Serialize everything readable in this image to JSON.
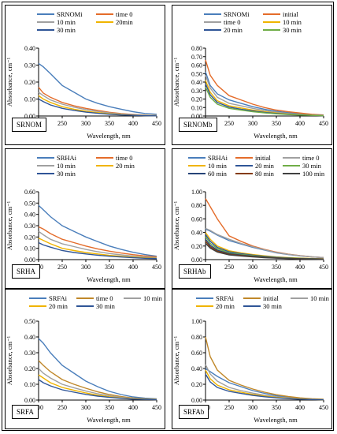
{
  "chart_data": [
    {
      "type": "line",
      "panel_label": "SRNOM",
      "xlabel": "Wavelength, nm",
      "ylabel": "Absorbance, cm⁻¹",
      "xlim": [
        200,
        450
      ],
      "ylim": [
        0,
        0.4
      ],
      "x_ticks": [
        "200",
        "250",
        "300",
        "350",
        "400",
        "450"
      ],
      "y_ticks": [
        "0.00",
        "0.10",
        "0.20",
        "0.30",
        "0.40"
      ],
      "x": [
        200,
        210,
        225,
        250,
        275,
        300,
        325,
        350,
        375,
        400,
        425,
        450
      ],
      "series": [
        {
          "name": "SRNOMi",
          "color": "#4a7ebb",
          "values": [
            0.31,
            0.29,
            0.25,
            0.18,
            0.14,
            0.1,
            0.075,
            0.055,
            0.04,
            0.025,
            0.015,
            0.01
          ]
        },
        {
          "name": "time 0",
          "color": "#e46c2a",
          "values": [
            0.17,
            0.135,
            0.11,
            0.08,
            0.06,
            0.045,
            0.033,
            0.022,
            0.014,
            0.009,
            0.005,
            0.003
          ]
        },
        {
          "name": "10 min",
          "color": "#a0a0a0",
          "values": [
            0.14,
            0.12,
            0.095,
            0.07,
            0.052,
            0.038,
            0.027,
            0.018,
            0.012,
            0.007,
            0.004,
            0.002
          ]
        },
        {
          "name": "20min",
          "color": "#f0b400",
          "values": [
            0.12,
            0.1,
            0.08,
            0.055,
            0.04,
            0.028,
            0.02,
            0.013,
            0.008,
            0.005,
            0.003,
            0.002
          ]
        },
        {
          "name": "30 min",
          "color": "#2f5597",
          "values": [
            0.1,
            0.085,
            0.065,
            0.045,
            0.033,
            0.023,
            0.016,
            0.01,
            0.006,
            0.004,
            0.002,
            0.001
          ]
        }
      ],
      "legend_cols": 2
    },
    {
      "type": "line",
      "panel_label": "SRNOMb",
      "xlabel": "Wavelength, nm",
      "ylabel": "Absorbance, cm⁻¹",
      "xlim": [
        200,
        450
      ],
      "ylim": [
        0,
        0.8
      ],
      "x_ticks": [
        "200",
        "250",
        "300",
        "350",
        "400",
        "450"
      ],
      "y_ticks": [
        "0.00",
        "0.10",
        "0.20",
        "0.30",
        "0.40",
        "0.50",
        "0.60",
        "0.70",
        "0.80"
      ],
      "x": [
        200,
        210,
        225,
        250,
        275,
        300,
        325,
        350,
        375,
        400,
        425,
        450
      ],
      "series": [
        {
          "name": "SRNOMi",
          "color": "#4a7ebb",
          "values": [
            0.52,
            0.36,
            0.26,
            0.19,
            0.15,
            0.11,
            0.08,
            0.055,
            0.04,
            0.025,
            0.015,
            0.01
          ]
        },
        {
          "name": "initial",
          "color": "#e46c2a",
          "values": [
            0.66,
            0.48,
            0.36,
            0.24,
            0.19,
            0.14,
            0.1,
            0.07,
            0.05,
            0.035,
            0.02,
            0.012
          ]
        },
        {
          "name": "time 0",
          "color": "#a0a0a0",
          "values": [
            0.48,
            0.33,
            0.22,
            0.15,
            0.12,
            0.09,
            0.065,
            0.045,
            0.03,
            0.02,
            0.012,
            0.008
          ]
        },
        {
          "name": "10 min",
          "color": "#f0b400",
          "values": [
            0.42,
            0.28,
            0.18,
            0.12,
            0.095,
            0.07,
            0.05,
            0.035,
            0.024,
            0.016,
            0.01,
            0.006
          ]
        },
        {
          "name": "20 min",
          "color": "#2f5597",
          "values": [
            0.38,
            0.25,
            0.16,
            0.105,
            0.08,
            0.06,
            0.042,
            0.03,
            0.02,
            0.013,
            0.008,
            0.005
          ]
        },
        {
          "name": "30 min",
          "color": "#70ad47",
          "values": [
            0.34,
            0.22,
            0.14,
            0.09,
            0.07,
            0.05,
            0.036,
            0.025,
            0.017,
            0.011,
            0.007,
            0.004
          ]
        }
      ],
      "legend_cols": 2
    },
    {
      "type": "line",
      "panel_label": "SRHA",
      "xlabel": "Wavelength, nm",
      "ylabel": "Absorbance, cm⁻¹",
      "xlim": [
        200,
        450
      ],
      "ylim": [
        0,
        0.6
      ],
      "x_ticks": [
        "200",
        "250",
        "300",
        "350",
        "400",
        "450"
      ],
      "y_ticks": [
        "0.00",
        "0.10",
        "0.20",
        "0.30",
        "0.40",
        "0.50",
        "0.60"
      ],
      "x": [
        200,
        210,
        225,
        250,
        275,
        300,
        325,
        350,
        375,
        400,
        425,
        450
      ],
      "series": [
        {
          "name": "SRHAi",
          "color": "#4a7ebb",
          "values": [
            0.48,
            0.44,
            0.38,
            0.3,
            0.25,
            0.2,
            0.16,
            0.12,
            0.09,
            0.065,
            0.045,
            0.03
          ]
        },
        {
          "name": "time 0",
          "color": "#e46c2a",
          "values": [
            0.29,
            0.27,
            0.23,
            0.18,
            0.15,
            0.12,
            0.095,
            0.075,
            0.058,
            0.044,
            0.033,
            0.025
          ]
        },
        {
          "name": "10 min",
          "color": "#a0a0a0",
          "values": [
            0.25,
            0.22,
            0.18,
            0.14,
            0.115,
            0.09,
            0.07,
            0.054,
            0.042,
            0.032,
            0.024,
            0.018
          ]
        },
        {
          "name": "20 min",
          "color": "#f0b400",
          "values": [
            0.19,
            0.17,
            0.14,
            0.1,
            0.08,
            0.063,
            0.05,
            0.038,
            0.029,
            0.022,
            0.016,
            0.012
          ]
        },
        {
          "name": "30 min",
          "color": "#2f5597",
          "values": [
            0.15,
            0.13,
            0.11,
            0.08,
            0.063,
            0.05,
            0.039,
            0.03,
            0.023,
            0.017,
            0.012,
            0.009
          ]
        }
      ],
      "legend_cols": 2
    },
    {
      "type": "line",
      "panel_label": "SRHAb",
      "xlabel": "Wavelength, nm",
      "ylabel": "Absorbance, cm⁻¹",
      "xlim": [
        200,
        450
      ],
      "ylim": [
        0,
        1.0
      ],
      "x_ticks": [
        "200",
        "250",
        "300",
        "350",
        "400",
        "450"
      ],
      "y_ticks": [
        "0.00",
        "0.20",
        "0.40",
        "0.60",
        "0.80",
        "1.00"
      ],
      "x": [
        200,
        210,
        225,
        250,
        275,
        300,
        325,
        350,
        375,
        400,
        425,
        450
      ],
      "series": [
        {
          "name": "SRHAi",
          "color": "#4a7ebb",
          "values": [
            0.45,
            0.42,
            0.36,
            0.28,
            0.23,
            0.18,
            0.14,
            0.1,
            0.075,
            0.055,
            0.04,
            0.03
          ]
        },
        {
          "name": "initial",
          "color": "#e46c2a",
          "values": [
            0.9,
            0.78,
            0.6,
            0.35,
            0.27,
            0.2,
            0.15,
            0.11,
            0.08,
            0.058,
            0.042,
            0.03
          ]
        },
        {
          "name": "time 0",
          "color": "#a0a0a0",
          "values": [
            0.46,
            0.43,
            0.37,
            0.3,
            0.24,
            0.19,
            0.145,
            0.105,
            0.078,
            0.057,
            0.041,
            0.03
          ]
        },
        {
          "name": "10 min",
          "color": "#f0b400",
          "values": [
            0.4,
            0.3,
            0.2,
            0.13,
            0.1,
            0.075,
            0.056,
            0.04,
            0.03,
            0.022,
            0.016,
            0.012
          ]
        },
        {
          "name": "20 min",
          "color": "#2f5597",
          "values": [
            0.37,
            0.27,
            0.18,
            0.115,
            0.088,
            0.066,
            0.049,
            0.036,
            0.026,
            0.019,
            0.014,
            0.01
          ]
        },
        {
          "name": "30 min",
          "color": "#70ad47",
          "values": [
            0.34,
            0.24,
            0.16,
            0.1,
            0.077,
            0.058,
            0.043,
            0.031,
            0.023,
            0.017,
            0.012,
            0.009
          ]
        },
        {
          "name": "60 min",
          "color": "#264478",
          "values": [
            0.3,
            0.21,
            0.14,
            0.088,
            0.067,
            0.05,
            0.037,
            0.027,
            0.02,
            0.014,
            0.01,
            0.007
          ]
        },
        {
          "name": "80 min",
          "color": "#843c0c",
          "values": [
            0.27,
            0.19,
            0.125,
            0.078,
            0.06,
            0.045,
            0.033,
            0.024,
            0.017,
            0.012,
            0.009,
            0.006
          ]
        },
        {
          "name": "100 min",
          "color": "#404040",
          "values": [
            0.24,
            0.17,
            0.11,
            0.07,
            0.053,
            0.04,
            0.029,
            0.021,
            0.015,
            0.011,
            0.008,
            0.005
          ]
        }
      ],
      "legend_cols": 3
    },
    {
      "type": "line",
      "panel_label": "SRFA",
      "xlabel": "Wavelength, nm",
      "ylabel": "Absorbance, cm⁻¹",
      "xlim": [
        200,
        450
      ],
      "ylim": [
        0,
        0.5
      ],
      "x_ticks": [
        "200",
        "250",
        "300",
        "350",
        "400",
        "450"
      ],
      "y_ticks": [
        "0.00",
        "0.10",
        "0.20",
        "0.30",
        "0.40",
        "0.50"
      ],
      "x": [
        200,
        210,
        225,
        250,
        275,
        300,
        325,
        350,
        375,
        400,
        425,
        450
      ],
      "series": [
        {
          "name": "SRFAi",
          "color": "#4a7ebb",
          "values": [
            0.39,
            0.36,
            0.3,
            0.22,
            0.17,
            0.12,
            0.085,
            0.055,
            0.035,
            0.02,
            0.012,
            0.008
          ]
        },
        {
          "name": "time 0",
          "color": "#c0882a",
          "values": [
            0.25,
            0.22,
            0.18,
            0.13,
            0.1,
            0.075,
            0.052,
            0.035,
            0.022,
            0.013,
            0.008,
            0.005
          ]
        },
        {
          "name": "10 min",
          "color": "#a0a0a0",
          "values": [
            0.2,
            0.17,
            0.14,
            0.1,
            0.078,
            0.057,
            0.04,
            0.027,
            0.017,
            0.01,
            0.006,
            0.004
          ]
        },
        {
          "name": "20 min",
          "color": "#f0b400",
          "values": [
            0.16,
            0.14,
            0.11,
            0.08,
            0.062,
            0.045,
            0.031,
            0.021,
            0.013,
            0.008,
            0.005,
            0.003
          ]
        },
        {
          "name": "30 min",
          "color": "#2f5597",
          "values": [
            0.13,
            0.11,
            0.09,
            0.065,
            0.05,
            0.036,
            0.025,
            0.017,
            0.011,
            0.006,
            0.004,
            0.002
          ]
        }
      ],
      "legend_cols": 3
    },
    {
      "type": "line",
      "panel_label": "SRFAb",
      "xlabel": "Wavelength, nm",
      "ylabel": "Absorbance, cm⁻¹",
      "xlim": [
        200,
        450
      ],
      "ylim": [
        0,
        1.0
      ],
      "x_ticks": [
        "200",
        "250",
        "300",
        "350",
        "400",
        "450"
      ],
      "y_ticks": [
        "0.00",
        "0.20",
        "0.40",
        "0.60",
        "0.80",
        "1.00"
      ],
      "x": [
        200,
        210,
        225,
        250,
        275,
        300,
        325,
        350,
        375,
        400,
        425,
        450
      ],
      "series": [
        {
          "name": "SRFAi",
          "color": "#4a7ebb",
          "values": [
            0.4,
            0.36,
            0.3,
            0.22,
            0.17,
            0.12,
            0.085,
            0.055,
            0.035,
            0.02,
            0.012,
            0.008
          ]
        },
        {
          "name": "initial",
          "color": "#c0882a",
          "values": [
            0.8,
            0.55,
            0.38,
            0.25,
            0.19,
            0.14,
            0.1,
            0.068,
            0.045,
            0.028,
            0.017,
            0.01
          ]
        },
        {
          "name": "10 min",
          "color": "#a0a0a0",
          "values": [
            0.45,
            0.33,
            0.24,
            0.16,
            0.12,
            0.088,
            0.062,
            0.042,
            0.028,
            0.017,
            0.01,
            0.006
          ]
        },
        {
          "name": "20 min",
          "color": "#f0b400",
          "values": [
            0.38,
            0.27,
            0.19,
            0.13,
            0.1,
            0.072,
            0.05,
            0.034,
            0.022,
            0.014,
            0.008,
            0.005
          ]
        },
        {
          "name": "30 min",
          "color": "#2f5597",
          "values": [
            0.33,
            0.23,
            0.16,
            0.11,
            0.084,
            0.06,
            0.042,
            0.028,
            0.018,
            0.011,
            0.007,
            0.004
          ]
        }
      ],
      "legend_cols": 3
    }
  ]
}
